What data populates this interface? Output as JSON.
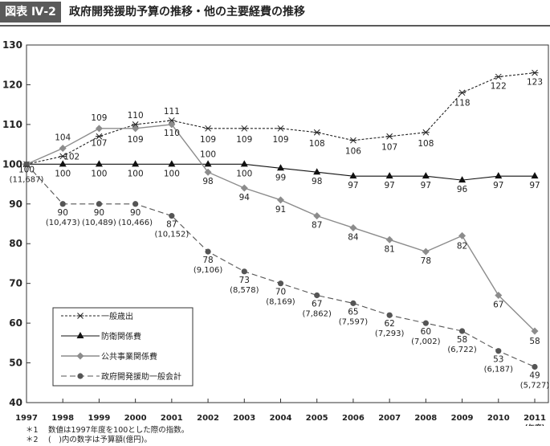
{
  "header": {
    "badge": "図表 Ⅳ-2",
    "title": "政府開発援助予算の推移・他の主要経費の推移"
  },
  "chart_data": {
    "type": "line",
    "x": [
      1997,
      1998,
      1999,
      2000,
      2001,
      2002,
      2003,
      2004,
      2005,
      2006,
      2007,
      2008,
      2009,
      2010,
      2011
    ],
    "x_tick_labels": [
      "1997",
      "1998",
      "1999",
      "2000",
      "2001",
      "2002",
      "2003",
      "2004",
      "2005",
      "2006",
      "2007",
      "2008",
      "2009",
      "2010",
      "2011"
    ],
    "x_unit_label": "(年度)",
    "ylim": [
      40,
      130
    ],
    "yticks": [
      40,
      50,
      60,
      70,
      80,
      90,
      100,
      110,
      120,
      130
    ],
    "grid": false,
    "legend_position": "lower-left",
    "series": [
      {
        "name": "一般歳出",
        "marker": "asterisk",
        "line": "dashed-fine",
        "color": "#222222",
        "values": [
          100,
          102,
          107,
          110,
          111,
          109,
          109,
          109,
          108,
          106,
          107,
          108,
          118,
          122,
          123
        ],
        "labels": [
          "",
          "102",
          "107",
          "110",
          "111",
          "109",
          "109",
          "109",
          "108",
          "106",
          "107",
          "108",
          "118",
          "122",
          "123"
        ]
      },
      {
        "name": "防衛関係費",
        "marker": "triangle",
        "line": "solid",
        "color": "#111111",
        "values": [
          100,
          100,
          100,
          100,
          100,
          100,
          100,
          99,
          98,
          97,
          97,
          97,
          96,
          97,
          97
        ],
        "labels": [
          "",
          "100",
          "100",
          "100",
          "100",
          "100",
          "100",
          "99",
          "98",
          "97",
          "97",
          "97",
          "96",
          "97",
          "97"
        ]
      },
      {
        "name": "公共事業関係費",
        "marker": "diamond",
        "line": "solid",
        "color": "#8c8c8c",
        "values": [
          100,
          104,
          109,
          109,
          110,
          98,
          94,
          91,
          87,
          84,
          81,
          78,
          82,
          67,
          58
        ],
        "labels": [
          "",
          "104",
          "109",
          "109",
          "110",
          "98",
          "94",
          "91",
          "87",
          "84",
          "81",
          "78",
          "82",
          "67",
          "58"
        ]
      },
      {
        "name": "政府開発援助一般会計",
        "marker": "circle",
        "line": "dashed",
        "color": "#555555",
        "values": [
          100,
          90,
          90,
          90,
          87,
          78,
          73,
          70,
          67,
          65,
          62,
          60,
          58,
          53,
          49
        ],
        "labels": [
          "100",
          "90",
          "90",
          "90",
          "87",
          "78",
          "73",
          "70",
          "67",
          "65",
          "62",
          "60",
          "58",
          "53",
          "49"
        ],
        "budget_labels": [
          "(11,687)",
          "(10,473)",
          "(10,489)",
          "(10,466)",
          "(10,152)",
          "(9,106)",
          "(8,578)",
          "(8,169)",
          "(7,862)",
          "(7,597)",
          "(7,293)",
          "(7,002)",
          "(6,722)",
          "(6,187)",
          "(5,727)"
        ]
      }
    ]
  },
  "notes": [
    {
      "marker": "＊1",
      "text": "数値は1997年度を100とした際の指数。"
    },
    {
      "marker": "＊2",
      "text": "(　)内の数字は予算額(億円)。"
    }
  ]
}
